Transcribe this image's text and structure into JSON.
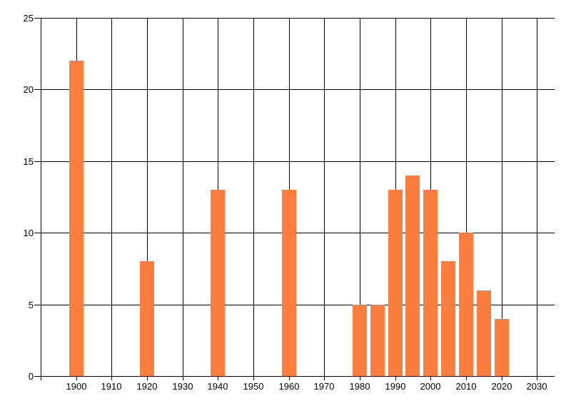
{
  "chart_data": {
    "type": "bar",
    "title": "",
    "xlabel": "",
    "ylabel": "",
    "categories": [
      1900,
      1920,
      1940,
      1960,
      1980,
      1985,
      1990,
      1995,
      2000,
      2005,
      2010,
      2015,
      2020
    ],
    "values": [
      22,
      8,
      13,
      13,
      5,
      5,
      13,
      14,
      13,
      8,
      10,
      6,
      4
    ],
    "xlim": [
      1890,
      2035
    ],
    "ylim": [
      0,
      25
    ],
    "x_ticks": [
      1900,
      1910,
      1920,
      1930,
      1940,
      1950,
      1960,
      1970,
      1980,
      1990,
      2000,
      2010,
      2020,
      2030
    ],
    "y_ticks": [
      0,
      5,
      10,
      15,
      20,
      25
    ],
    "bar_width_years": 4,
    "grid": true,
    "legend_position": "none",
    "colors": {
      "bar": "#fb7e3f",
      "grid": "#000000",
      "label": "#000000",
      "background": "#ffffff"
    }
  }
}
